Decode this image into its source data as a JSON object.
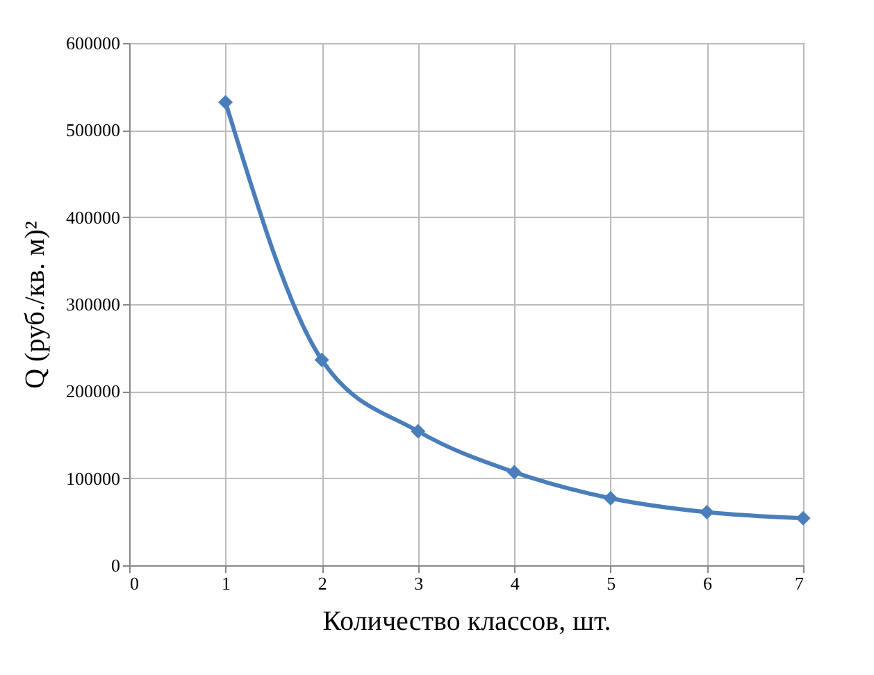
{
  "chart_data": {
    "type": "line",
    "xlabel": "Количество классов, шт.",
    "ylabel": "Q (руб./кв. м)²",
    "x": [
      1,
      2,
      3,
      4,
      5,
      6,
      7
    ],
    "series": [
      {
        "color": "#4a7ebb",
        "values": [
          532000,
          236000,
          154000,
          107000,
          77000,
          61000,
          54000
        ]
      }
    ],
    "xlim": [
      0,
      7
    ],
    "xticks": [
      0,
      1,
      2,
      3,
      4,
      5,
      6,
      7
    ],
    "ylim": [
      0,
      600000
    ],
    "yticks": [
      0,
      100000,
      200000,
      300000,
      400000,
      500000,
      600000
    ],
    "grid": true,
    "marker": "diamond",
    "line_style": "solid",
    "legend": false
  }
}
